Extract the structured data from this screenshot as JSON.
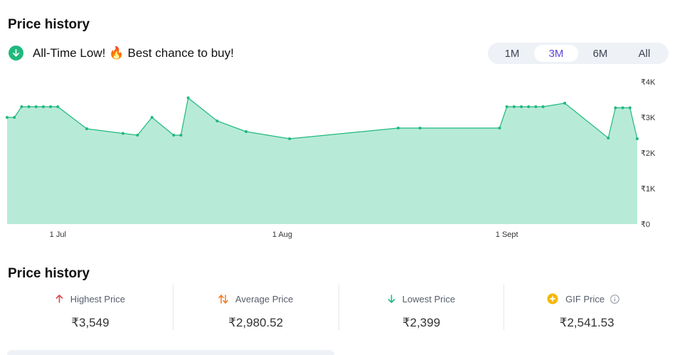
{
  "header": {
    "title": "Price history"
  },
  "alert": {
    "text_before": "All-Time Low!",
    "flame": "🔥",
    "text_after": "Best chance to buy!",
    "icon": "arrow-down-circle-icon"
  },
  "range_tabs": [
    {
      "label": "1M",
      "active": false
    },
    {
      "label": "3M",
      "active": true
    },
    {
      "label": "6M",
      "active": false
    },
    {
      "label": "All",
      "active": false
    }
  ],
  "chart_data": {
    "type": "area",
    "x_labels": [
      "1 Jul",
      "1 Aug",
      "1 Sept"
    ],
    "y_ticks": [
      "₹0",
      "₹1K",
      "₹2K",
      "₹3K",
      "₹4K"
    ],
    "ylim": [
      0,
      4000
    ],
    "grid": false,
    "color": "#1fb97e",
    "fill_color": "#b8ead8",
    "points": [
      {
        "x": "2024-06-24",
        "y": 3000
      },
      {
        "x": "2024-06-25",
        "y": 3000
      },
      {
        "x": "2024-06-26",
        "y": 3300
      },
      {
        "x": "2024-06-27",
        "y": 3300
      },
      {
        "x": "2024-06-28",
        "y": 3300
      },
      {
        "x": "2024-06-29",
        "y": 3300
      },
      {
        "x": "2024-06-30",
        "y": 3300
      },
      {
        "x": "2024-07-01",
        "y": 3300
      },
      {
        "x": "2024-07-05",
        "y": 2680
      },
      {
        "x": "2024-07-10",
        "y": 2550
      },
      {
        "x": "2024-07-12",
        "y": 2500
      },
      {
        "x": "2024-07-14",
        "y": 3000
      },
      {
        "x": "2024-07-17",
        "y": 2500
      },
      {
        "x": "2024-07-18",
        "y": 2500
      },
      {
        "x": "2024-07-19",
        "y": 3549
      },
      {
        "x": "2024-07-23",
        "y": 2900
      },
      {
        "x": "2024-07-27",
        "y": 2600
      },
      {
        "x": "2024-08-02",
        "y": 2399
      },
      {
        "x": "2024-08-17",
        "y": 2700
      },
      {
        "x": "2024-08-20",
        "y": 2700
      },
      {
        "x": "2024-08-31",
        "y": 2700
      },
      {
        "x": "2024-09-01",
        "y": 3300
      },
      {
        "x": "2024-09-02",
        "y": 3300
      },
      {
        "x": "2024-09-03",
        "y": 3300
      },
      {
        "x": "2024-09-04",
        "y": 3300
      },
      {
        "x": "2024-09-05",
        "y": 3300
      },
      {
        "x": "2024-09-06",
        "y": 3300
      },
      {
        "x": "2024-09-09",
        "y": 3400
      },
      {
        "x": "2024-09-15",
        "y": 2420
      },
      {
        "x": "2024-09-16",
        "y": 3270
      },
      {
        "x": "2024-09-17",
        "y": 3270
      },
      {
        "x": "2024-09-18",
        "y": 3270
      },
      {
        "x": "2024-09-19",
        "y": 2399
      }
    ]
  },
  "stats_title": "Price history",
  "stats": [
    {
      "label": "Highest Price",
      "value": "₹3,549",
      "icon": "arrow-up-icon",
      "color": "#e0464f"
    },
    {
      "label": "Average Price",
      "value": "₹2,980.52",
      "icon": "up-down-arrows-icon",
      "color": "#f07a20"
    },
    {
      "label": "Lowest Price",
      "value": "₹2,399",
      "icon": "arrow-down-icon",
      "color": "#1fb97e"
    },
    {
      "label": "GIF Price",
      "value": "₹2,541.53",
      "icon": "gif-badge-icon",
      "color": "#f5b800",
      "info_icon": "info-icon"
    }
  ]
}
